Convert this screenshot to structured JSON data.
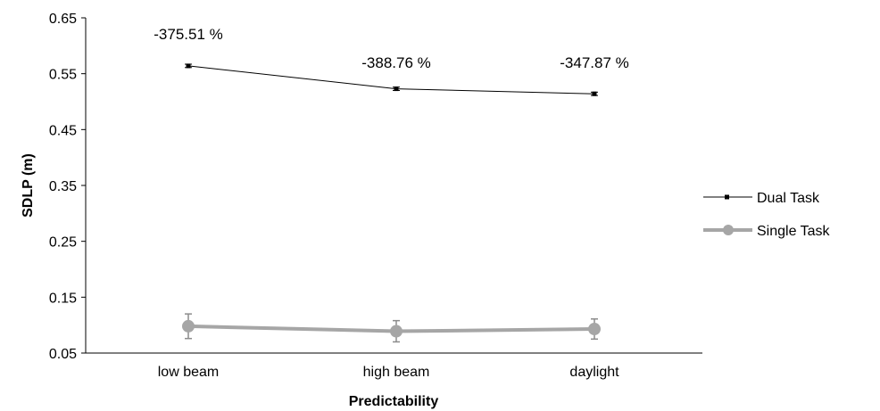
{
  "chart_data": {
    "type": "line",
    "categories": [
      "low beam",
      "high beam",
      "daylight"
    ],
    "xlabel": "Predictability",
    "ylabel": "SDLP (m)",
    "ylim": [
      0.05,
      0.65
    ],
    "yticks": [
      "0.65",
      "0.55",
      "0.45",
      "0.35",
      "0.25",
      "0.15",
      "0.05"
    ],
    "grid": false,
    "legend_position": "right",
    "series": [
      {
        "name": "Dual Task",
        "values": [
          0.564,
          0.523,
          0.514
        ],
        "errors": [
          0.003,
          0.003,
          0.003
        ],
        "color": "#000000",
        "style": "thin-line-square-markers"
      },
      {
        "name": "Single Task",
        "values": [
          0.098,
          0.089,
          0.093
        ],
        "errors": [
          0.022,
          0.019,
          0.018
        ],
        "color": "#a6a6a6",
        "style": "thick-line-circle-markers"
      }
    ],
    "annotations": [
      "-375.51 %",
      "-388.76 %",
      "-347.87 %"
    ]
  }
}
